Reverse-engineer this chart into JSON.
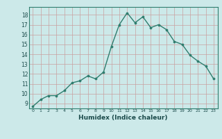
{
  "x": [
    0,
    1,
    2,
    3,
    4,
    5,
    6,
    7,
    8,
    9,
    10,
    11,
    12,
    13,
    14,
    15,
    16,
    17,
    18,
    19,
    20,
    21,
    22,
    23
  ],
  "y": [
    8.7,
    9.4,
    9.8,
    9.8,
    10.3,
    11.1,
    11.3,
    11.8,
    11.5,
    12.2,
    14.8,
    17.0,
    18.2,
    17.2,
    17.8,
    16.7,
    17.0,
    16.5,
    15.3,
    15.0,
    13.9,
    13.3,
    12.8,
    11.5
  ],
  "xlabel": "Humidex (Indice chaleur)",
  "ylim": [
    8.5,
    18.8
  ],
  "xlim": [
    -0.5,
    23.5
  ],
  "yticks": [
    9,
    10,
    11,
    12,
    13,
    14,
    15,
    16,
    17,
    18
  ],
  "xticks": [
    0,
    1,
    2,
    3,
    4,
    5,
    6,
    7,
    8,
    9,
    10,
    11,
    12,
    13,
    14,
    15,
    16,
    17,
    18,
    19,
    20,
    21,
    22,
    23
  ],
  "line_color": "#2e7d6e",
  "marker_color": "#2e7d6e",
  "bg_color": "#cce9e9",
  "grid_color": "#c8a0a0",
  "xlabel_color": "#1a4a4a",
  "tick_color": "#1a4a4a"
}
